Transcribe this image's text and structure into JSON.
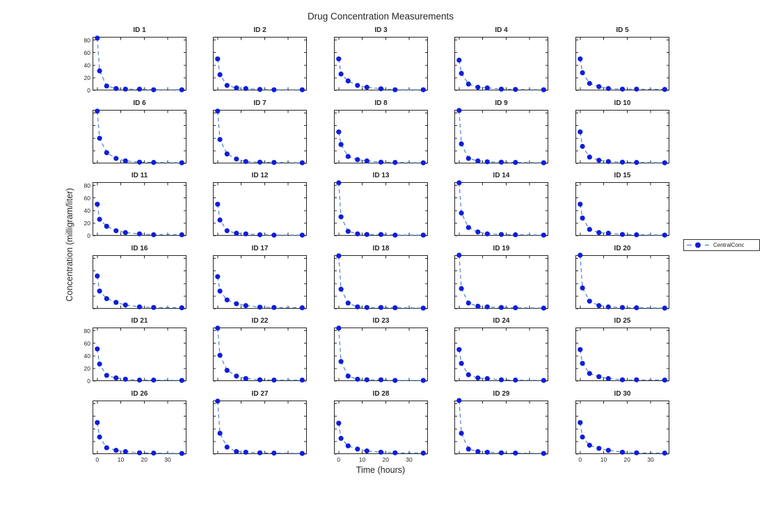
{
  "figure": {
    "title": "Drug Concentration Measurements",
    "xlabel": "Time (hours)",
    "ylabel": "Concentration (milligram/liter)",
    "legend": {
      "label": "CentralConc"
    }
  },
  "chart_data": {
    "type": "line",
    "title": "Drug Concentration Measurements",
    "xlabel": "Time (hours)",
    "ylabel": "Concentration (milligram/liter)",
    "legend_entries": [
      "CentralConc"
    ],
    "legend_position": "right-outside",
    "grid": false,
    "line_style": "dashed",
    "marker": "filled-circle",
    "colors": {
      "marker": "#0F1EDB",
      "line": "#4E7FD0",
      "axis": "#262626",
      "background": "#FFFFFF"
    },
    "x": [
      0,
      1,
      4,
      8,
      12,
      18,
      24,
      36
    ],
    "xlim": [
      -2,
      38
    ],
    "ylim": [
      0,
      85
    ],
    "xticks": [
      0,
      10,
      20,
      30
    ],
    "yticks": [
      0,
      20,
      40,
      60,
      80
    ],
    "grid_shape": {
      "rows": 6,
      "cols": 5
    },
    "subplots": [
      {
        "label": "ID 1",
        "values": [
          83,
          31,
          7,
          3,
          2,
          2,
          1,
          1
        ]
      },
      {
        "label": "ID 2",
        "values": [
          50,
          25,
          8,
          4,
          3,
          1.5,
          1,
          1
        ]
      },
      {
        "label": "ID 3",
        "values": [
          50,
          26,
          15,
          8,
          5,
          2.5,
          1,
          1
        ]
      },
      {
        "label": "ID 4",
        "values": [
          48,
          27,
          10,
          5,
          4,
          2,
          1.5,
          1
        ]
      },
      {
        "label": "ID 5",
        "values": [
          50,
          28,
          11,
          6,
          3,
          2,
          2,
          1.5
        ]
      },
      {
        "label": "ID 6",
        "values": [
          83,
          40,
          17,
          8,
          4,
          2,
          1.5,
          1
        ]
      },
      {
        "label": "ID 7",
        "values": [
          83,
          38,
          15,
          7,
          3,
          2,
          1.5,
          1
        ]
      },
      {
        "label": "ID 8",
        "values": [
          50,
          30,
          11,
          6,
          4,
          2,
          1.5,
          1
        ]
      },
      {
        "label": "ID 9",
        "values": [
          84,
          31,
          8,
          4,
          2.5,
          2,
          1.5,
          1
        ]
      },
      {
        "label": "ID 10",
        "values": [
          50,
          27,
          10,
          5,
          3,
          2,
          1.5,
          1
        ]
      },
      {
        "label": "ID 11",
        "values": [
          50,
          26,
          15,
          8,
          5,
          3,
          1.5,
          1.5
        ]
      },
      {
        "label": "ID 12",
        "values": [
          50,
          25,
          8,
          4,
          3,
          1.5,
          1,
          1
        ]
      },
      {
        "label": "ID 13",
        "values": [
          84,
          30,
          7,
          3,
          2,
          2,
          1,
          1
        ]
      },
      {
        "label": "ID 14",
        "values": [
          84,
          36,
          13,
          6,
          3,
          2,
          1.5,
          1
        ]
      },
      {
        "label": "ID 15",
        "values": [
          50,
          28,
          10,
          5,
          4,
          2,
          1.5,
          1
        ]
      },
      {
        "label": "ID 16",
        "values": [
          52,
          28,
          16,
          10,
          6,
          3,
          2,
          1.5
        ]
      },
      {
        "label": "ID 17",
        "values": [
          51,
          28,
          14,
          8,
          5,
          2.5,
          2,
          1.5
        ]
      },
      {
        "label": "ID 18",
        "values": [
          84,
          31,
          9,
          3,
          2,
          2,
          1.5,
          1
        ]
      },
      {
        "label": "ID 19",
        "values": [
          85,
          32,
          9,
          4,
          3,
          2,
          1.5,
          1
        ]
      },
      {
        "label": "ID 20",
        "values": [
          85,
          33,
          12,
          5,
          3,
          2,
          1.5,
          1
        ]
      },
      {
        "label": "ID 21",
        "values": [
          51,
          27,
          9,
          5,
          3,
          1.5,
          1.5,
          1
        ]
      },
      {
        "label": "ID 22",
        "values": [
          84,
          41,
          17,
          8,
          4,
          2,
          1.5,
          1.5
        ]
      },
      {
        "label": "ID 23",
        "values": [
          84,
          31,
          8,
          3,
          2,
          2,
          1,
          1
        ]
      },
      {
        "label": "ID 24",
        "values": [
          50,
          28,
          10,
          5,
          4,
          2,
          1.5,
          1
        ]
      },
      {
        "label": "ID 25",
        "values": [
          50,
          28,
          12,
          7,
          4,
          2,
          2,
          1.5
        ]
      },
      {
        "label": "ID 26",
        "values": [
          50,
          27,
          10,
          6,
          4,
          2,
          1.5,
          1
        ]
      },
      {
        "label": "ID 27",
        "values": [
          84,
          33,
          11,
          4,
          3,
          2,
          1.5,
          1
        ]
      },
      {
        "label": "ID 28",
        "values": [
          49,
          25,
          13,
          8,
          5,
          3,
          2,
          1.5
        ]
      },
      {
        "label": "ID 29",
        "values": [
          85,
          33,
          8,
          4,
          3,
          2,
          1.5,
          1
        ]
      },
      {
        "label": "ID 30",
        "values": [
          50,
          27,
          14,
          9,
          6,
          3,
          2,
          1.5
        ]
      }
    ]
  }
}
